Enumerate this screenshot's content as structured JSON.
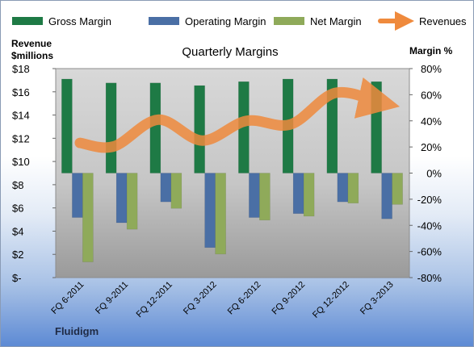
{
  "chart_data": {
    "type": "bar",
    "title": "Quarterly Margins",
    "left_axis_label_line1": "Revenue",
    "left_axis_label_line2": "$millions",
    "right_axis_label": "Margin %",
    "categories": [
      "FQ 6-2011",
      "FQ 9-2011",
      "FQ 12-2011",
      "FQ 3-2012",
      "FQ 6-2012",
      "FQ 9-2012",
      "FQ 12-2012",
      "FQ 3-2013"
    ],
    "series": [
      {
        "name": "Gross Margin",
        "axis": "right",
        "color": "#1e7a45",
        "values": [
          72,
          69,
          69,
          67,
          70,
          72,
          72,
          70
        ]
      },
      {
        "name": "Operating Margin",
        "axis": "right",
        "color": "#4a6fa5",
        "values": [
          -34,
          -38,
          -22,
          -57,
          -34,
          -31,
          -22,
          -35
        ]
      },
      {
        "name": "Net Margin",
        "axis": "right",
        "color": "#8faa5a",
        "values": [
          -68,
          -43,
          -27,
          -62,
          -36,
          -33,
          -23,
          -24
        ]
      },
      {
        "name": "Revenues",
        "axis": "left",
        "type": "line",
        "color": "#ef8a3d",
        "values": [
          11.6,
          11.3,
          13.6,
          11.8,
          13.5,
          13.2,
          15.9,
          15.1
        ]
      }
    ],
    "left_ylim": [
      0,
      18
    ],
    "left_ticks": [
      "$-",
      "$2",
      "$4",
      "$6",
      "$8",
      "$10",
      "$12",
      "$14",
      "$16",
      "$18"
    ],
    "right_ylim": [
      -80,
      80
    ],
    "right_ticks": [
      "-80%",
      "-60%",
      "-40%",
      "-20%",
      "0%",
      "20%",
      "40%",
      "60%",
      "80%"
    ],
    "legend_position": "top",
    "grid": false
  },
  "footer": {
    "company": "Fluidigm"
  }
}
